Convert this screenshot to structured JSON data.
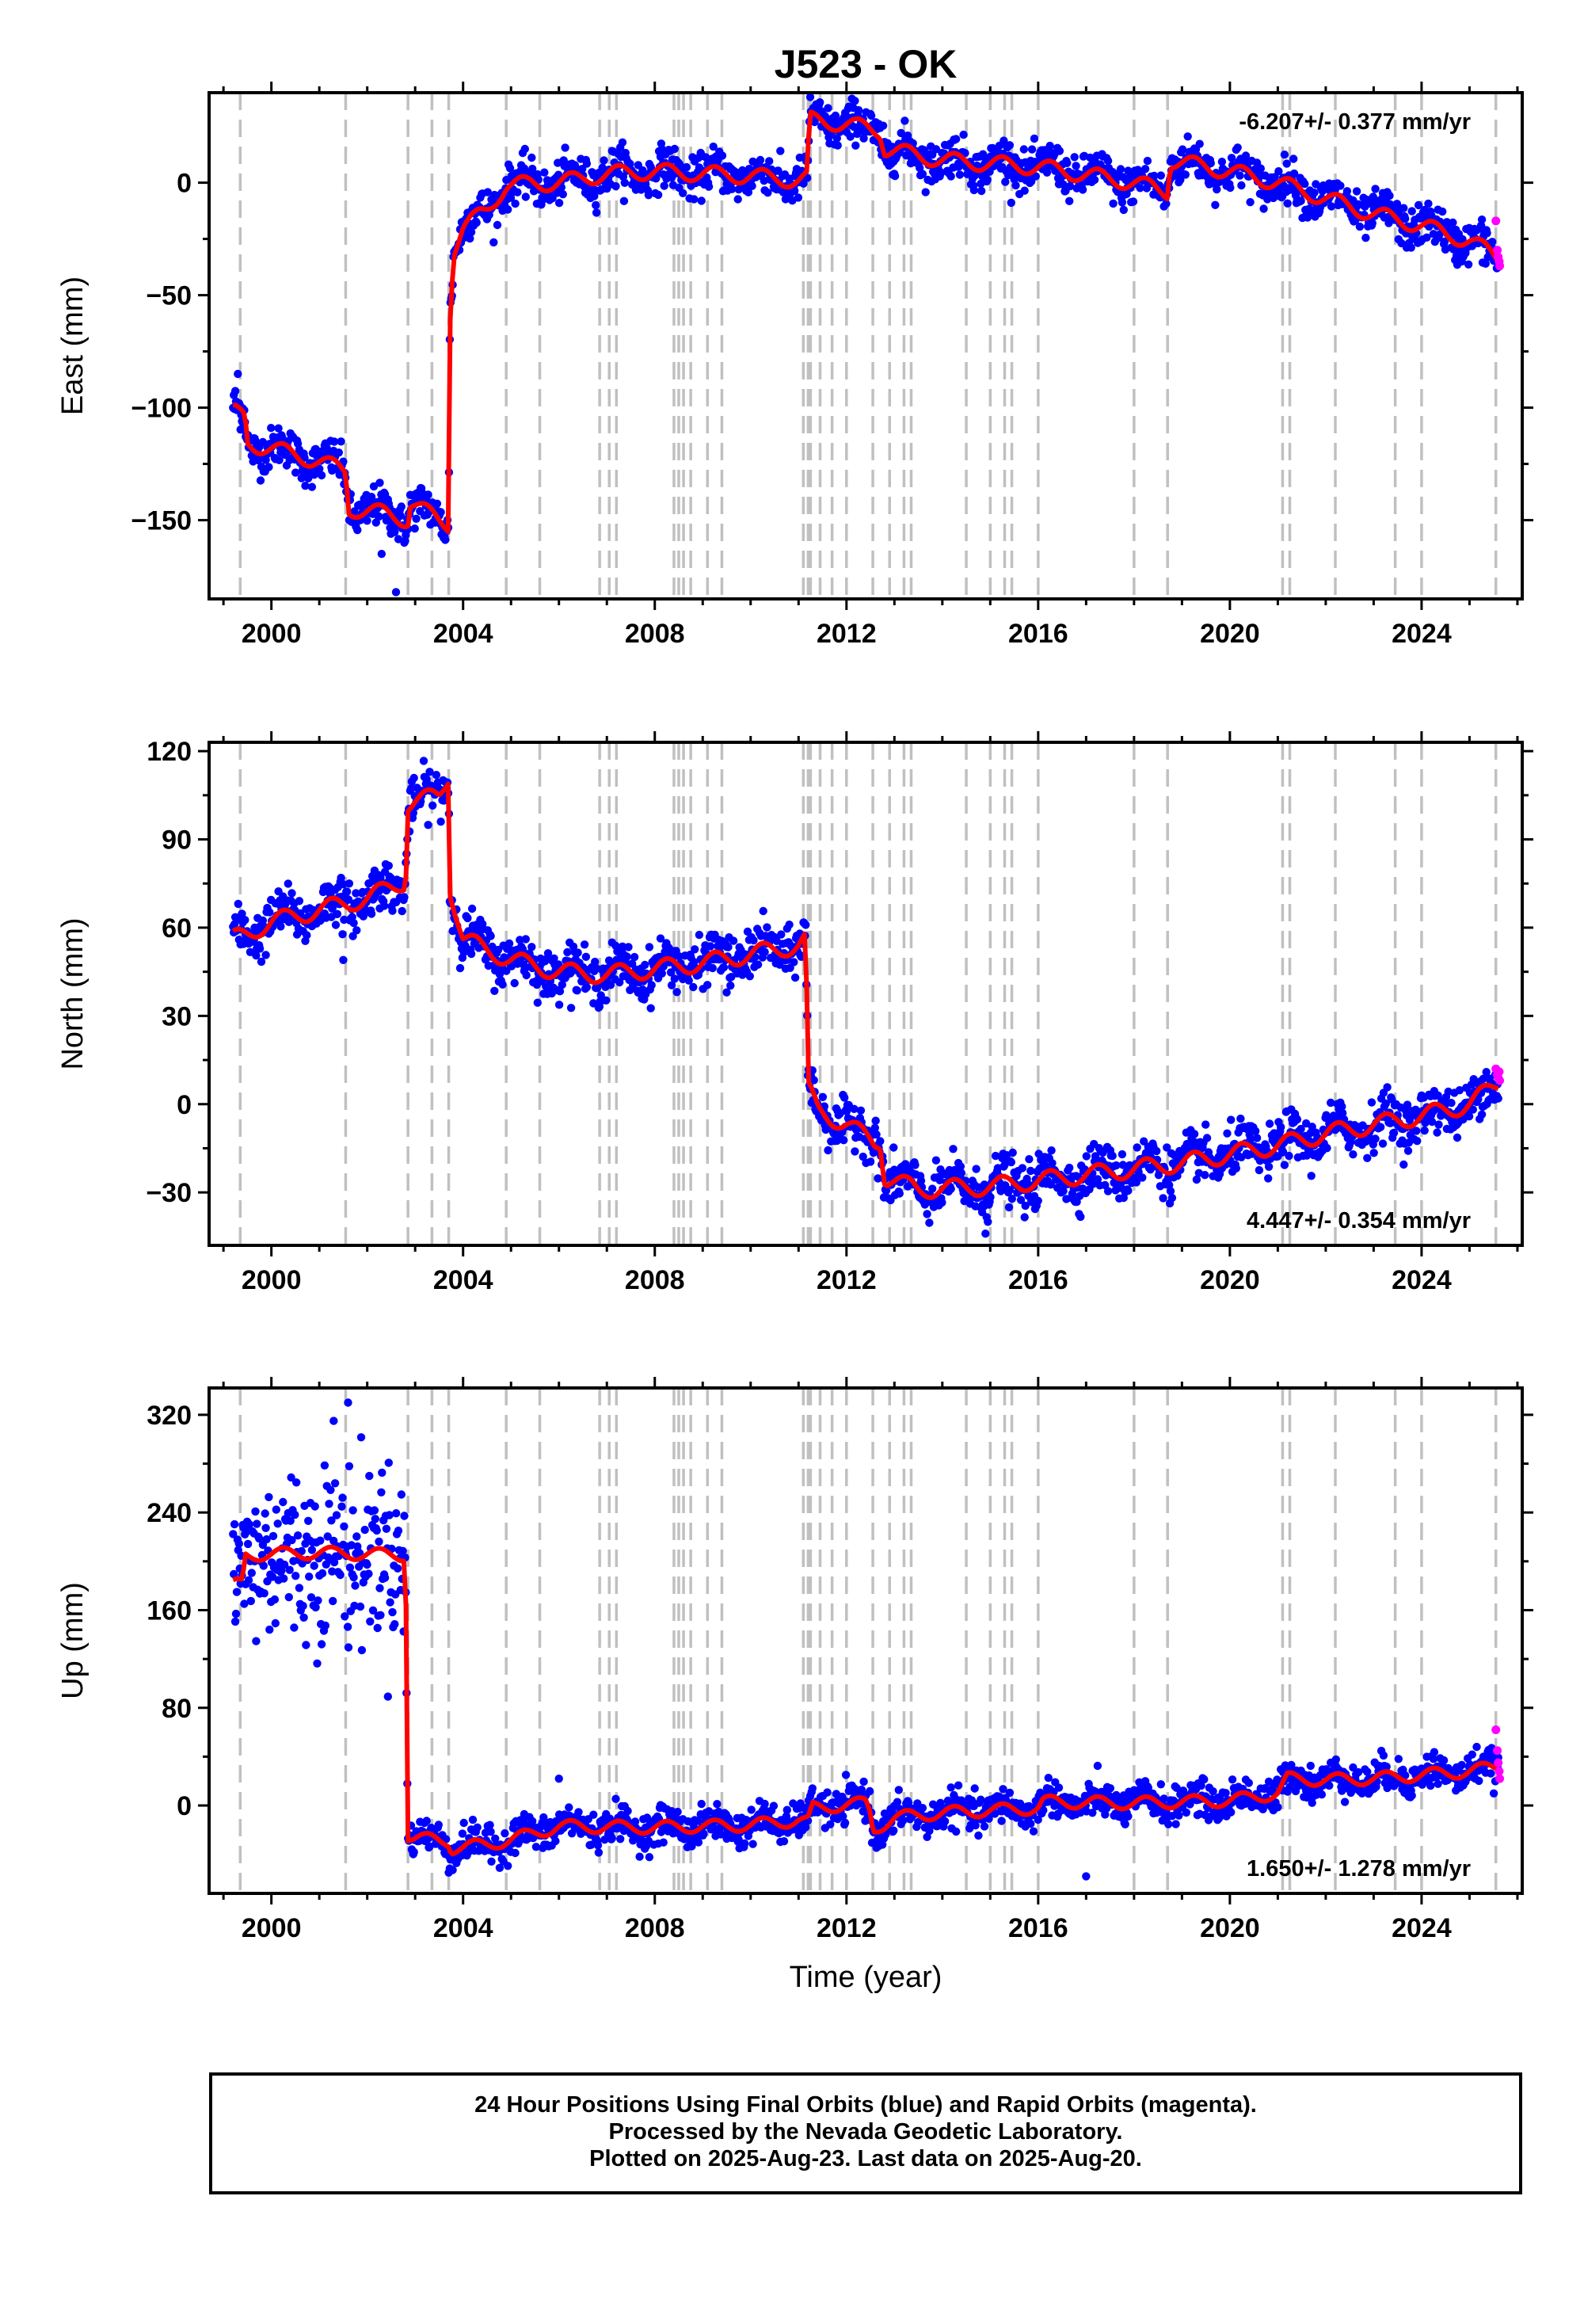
{
  "title": "J523 - OK",
  "caption": [
    "24 Hour Positions Using Final Orbits (blue) and Rapid Orbits (magenta).",
    "Processed by the Nevada Geodetic Laboratory.",
    "Plotted on 2025-Aug-23. Last data on 2025-Aug-20."
  ],
  "colors": {
    "final": "#0000ff",
    "rapid": "#ff00ff",
    "model": "#ff0000",
    "event_line": "#c0c0c0",
    "frame": "#000000"
  },
  "chart_data": [
    {
      "type": "scatter",
      "panel": "east",
      "ylabel": "East (mm)",
      "xlabel": "",
      "xlim": [
        1998.7,
        2026.1
      ],
      "ylim": [
        -185,
        40
      ],
      "xticks": [
        2000,
        2004,
        2008,
        2012,
        2016,
        2020,
        2024
      ],
      "yticks": [
        -150,
        -100,
        -50,
        0
      ],
      "ytick_labels": [
        "−150",
        "−100",
        "−50",
        "0"
      ],
      "rate_label": "-6.207+/- 0.377 mm/yr",
      "rate_position": "top-right",
      "noise": 4.5,
      "model_series": {
        "name": "model",
        "x": [
          1999.2,
          1999.45,
          1999.5,
          2000.0,
          2001.0,
          2001.55,
          2001.62,
          2002.4,
          2002.85,
          2002.9,
          2003.5,
          2003.7,
          2003.72,
          2003.8,
          2004.0,
          2004.5,
          2004.9,
          2006.0,
          2007.0,
          2008.0,
          2009.0,
          2010.0,
          2011.0,
          2011.2,
          2011.22,
          2012.0,
          2012.7,
          2012.8,
          2014.0,
          2016.0,
          2018.0,
          2018.7,
          2018.75,
          2020.0,
          2021.0,
          2022.0,
          2023.0,
          2024.0,
          2025.0,
          2025.6
        ],
        "y": [
          -102,
          -104,
          -116,
          -118,
          -124,
          -128,
          -145,
          -147,
          -150,
          -142,
          -150,
          -152,
          -62,
          -30,
          -20,
          -12,
          -1,
          0,
          4,
          5,
          4,
          3,
          1,
          2,
          28,
          26,
          23,
          15,
          10,
          7,
          0,
          -4,
          10,
          5,
          0,
          -7,
          -14,
          -19,
          -26,
          -33
        ]
      },
      "seasonal_amplitude": 3.5,
      "outliers_x": [
        2002.6,
        2002.3,
        1999.3
      ],
      "outliers_y": [
        -182,
        -165,
        -85
      ],
      "rapid_x": [
        2025.55,
        2025.58,
        2025.6,
        2025.62,
        2025.63
      ],
      "rapid_y": [
        -17,
        -30,
        -33,
        -35,
        -37
      ],
      "event_lines": [
        1999.35,
        2001.55,
        2002.85,
        2003.35,
        2003.7,
        2004.9,
        2005.6,
        2006.85,
        2007.05,
        2007.2,
        2008.4,
        2008.5,
        2008.6,
        2008.75,
        2009.1,
        2009.4,
        2011.1,
        2011.2,
        2011.25,
        2011.45,
        2011.7,
        2012.0,
        2012.55,
        2012.9,
        2013.2,
        2013.35,
        2014.5,
        2015.0,
        2015.3,
        2015.45,
        2016.0,
        2018.0,
        2018.7,
        2021.1,
        2021.25,
        2022.2,
        2023.45,
        2024.0,
        2025.55
      ]
    },
    {
      "type": "scatter",
      "panel": "north",
      "ylabel": "North (mm)",
      "xlabel": "",
      "xlim": [
        1998.7,
        2026.1
      ],
      "ylim": [
        -48,
        123
      ],
      "xticks": [
        2000,
        2004,
        2008,
        2012,
        2016,
        2020,
        2024
      ],
      "yticks": [
        -30,
        0,
        30,
        60,
        90,
        120
      ],
      "ytick_labels": [
        "−30",
        "0",
        "30",
        "60",
        "90",
        "120"
      ],
      "rate_label": "4.447+/- 0.354 mm/yr",
      "rate_position": "bottom-right",
      "noise": 4,
      "model_series": {
        "name": "model",
        "x": [
          1999.2,
          1999.5,
          2000.0,
          2001.0,
          2002.0,
          2002.8,
          2002.85,
          2003.5,
          2003.7,
          2003.72,
          2004.0,
          2005.0,
          2006.0,
          2007.0,
          2008.0,
          2009.0,
          2010.0,
          2011.0,
          2011.15,
          2011.2,
          2011.4,
          2012.0,
          2012.6,
          2012.7,
          2012.8,
          2013.5,
          2015.0,
          2016.0,
          2017.0,
          2018.0,
          2019.0,
          2020.0,
          2021.0,
          2022.0,
          2023.0,
          2024.0,
          2025.0,
          2025.6
        ],
        "y": [
          56,
          58,
          62,
          66,
          70,
          76,
          102,
          105,
          112,
          74,
          56,
          49,
          45,
          44,
          46,
          48,
          51,
          54,
          56,
          5,
          -2,
          -7,
          -13,
          -12,
          -25,
          -29,
          -28,
          -26,
          -24,
          -22,
          -20,
          -17,
          -14,
          -10,
          -7,
          -4,
          0,
          7
        ]
      },
      "seasonal_amplitude": 3,
      "outliers_x": [
        2014.9,
        2014.95,
        2001.5,
        2009.5
      ],
      "outliers_y": [
        -44,
        -40,
        49,
        38
      ],
      "rapid_x": [
        2025.55,
        2025.58,
        2025.6,
        2025.62,
        2025.63
      ],
      "rapid_y": [
        12,
        10,
        9,
        11,
        8
      ],
      "event_lines": [
        1999.35,
        2001.55,
        2002.85,
        2003.35,
        2003.7,
        2004.9,
        2005.6,
        2006.85,
        2007.05,
        2007.2,
        2008.4,
        2008.5,
        2008.6,
        2008.75,
        2009.1,
        2009.4,
        2011.1,
        2011.2,
        2011.25,
        2011.45,
        2011.7,
        2012.0,
        2012.55,
        2012.9,
        2013.2,
        2013.35,
        2014.5,
        2015.0,
        2015.3,
        2015.45,
        2016.0,
        2018.0,
        2018.7,
        2021.1,
        2021.25,
        2022.2,
        2023.45,
        2024.0,
        2025.55
      ]
    },
    {
      "type": "scatter",
      "panel": "up",
      "ylabel": "Up (mm)",
      "xlabel": "Time (year)",
      "xlim": [
        1998.7,
        2026.1
      ],
      "ylim": [
        -72,
        342
      ],
      "xticks": [
        2000,
        2004,
        2008,
        2012,
        2016,
        2020,
        2024
      ],
      "yticks": [
        0,
        80,
        160,
        240,
        320
      ],
      "ytick_labels": [
        "0",
        "80",
        "160",
        "240",
        "320"
      ],
      "rate_label": "1.650+/- 1.278 mm/yr",
      "rate_position": "bottom-right",
      "noise": 7,
      "model_series": {
        "name": "model",
        "x": [
          1999.2,
          1999.4,
          1999.45,
          2000.0,
          2001.0,
          2002.0,
          2002.8,
          2002.85,
          2003.0,
          2003.7,
          2003.75,
          2004.5,
          2005.0,
          2006.0,
          2008.0,
          2010.0,
          2011.0,
          2011.2,
          2011.3,
          2012.4,
          2012.5,
          2012.55,
          2013.0,
          2014.0,
          2016.0,
          2016.1,
          2018.0,
          2020.0,
          2021.0,
          2021.2,
          2022.0,
          2023.0,
          2024.0,
          2025.0,
          2025.6
        ],
        "y": [
          180,
          182,
          205,
          206,
          207,
          206,
          205,
          -25,
          -27,
          -29,
          -35,
          -32,
          -28,
          -17,
          -18,
          -16,
          -12,
          -14,
          -2,
          2,
          -6,
          -20,
          -10,
          -6,
          -2,
          3,
          2,
          4,
          10,
          22,
          21,
          22,
          25,
          28,
          32
        ]
      },
      "seasonal_amplitude": 5,
      "spread_before": 35,
      "outliers_x": [
        2001.6,
        2001.3,
        2017.0,
        2006.0,
        2003.7
      ],
      "outliers_y": [
        330,
        315,
        -58,
        22,
        -55
      ],
      "rapid_x": [
        2025.55,
        2025.58,
        2025.6,
        2025.62,
        2025.63
      ],
      "rapid_y": [
        62,
        45,
        35,
        28,
        22
      ],
      "event_lines": [
        1999.35,
        2001.55,
        2002.85,
        2003.35,
        2003.7,
        2004.9,
        2005.6,
        2006.85,
        2007.05,
        2007.2,
        2008.4,
        2008.5,
        2008.6,
        2008.75,
        2009.1,
        2009.4,
        2011.1,
        2011.2,
        2011.25,
        2011.45,
        2011.7,
        2012.0,
        2012.55,
        2012.9,
        2013.2,
        2013.35,
        2014.5,
        2015.0,
        2015.3,
        2015.45,
        2016.0,
        2018.0,
        2018.7,
        2021.1,
        2021.25,
        2022.2,
        2023.45,
        2024.0,
        2025.55
      ]
    }
  ]
}
